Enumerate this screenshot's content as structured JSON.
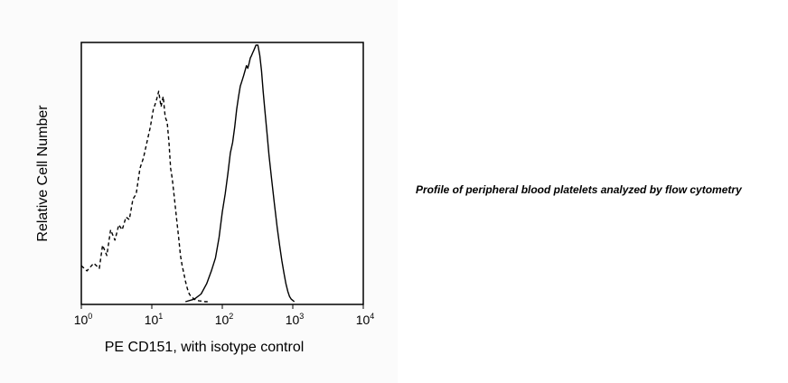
{
  "caption": "Profile of peripheral blood platelets analyzed by flow cytometry",
  "chart_data": {
    "type": "line",
    "xlabel": "PE CD151, with isotype control",
    "ylabel": "Relative Cell Number",
    "x_scale": "log",
    "xlim": [
      1,
      10000
    ],
    "ylim": [
      0,
      100
    ],
    "x_ticks": [
      {
        "base": "10",
        "exp": "0",
        "value": 1
      },
      {
        "base": "10",
        "exp": "1",
        "value": 10
      },
      {
        "base": "10",
        "exp": "2",
        "value": 100
      },
      {
        "base": "10",
        "exp": "3",
        "value": 1000
      },
      {
        "base": "10",
        "exp": "4",
        "value": 10000
      }
    ],
    "grid": false,
    "legend": "none",
    "series": [
      {
        "style": "dashed",
        "color": "#000000",
        "x": [
          1.0,
          1.2,
          1.5,
          1.8,
          2.0,
          2.3,
          2.6,
          3.0,
          3.4,
          3.8,
          4.3,
          4.8,
          5.4,
          6.0,
          6.8,
          7.6,
          8.5,
          9.5,
          10.5,
          11.5,
          12.5,
          13.5,
          14.5,
          15.5,
          16.5,
          17.5,
          18.5,
          19.5,
          21,
          22.5,
          24,
          25.5,
          27,
          28.5,
          30,
          32,
          34,
          36,
          38,
          40,
          43,
          47,
          52,
          57,
          62
        ],
        "y": [
          14,
          12,
          15,
          13,
          22,
          18,
          28,
          24,
          30,
          28,
          33,
          32,
          40,
          42,
          52,
          56,
          62,
          68,
          75,
          78,
          82,
          76,
          80,
          72,
          70,
          62,
          52,
          48,
          40,
          32,
          25,
          18,
          14,
          11,
          8,
          5,
          3,
          2,
          1.5,
          1,
          0.5,
          0.3,
          0.2,
          0,
          0
        ]
      },
      {
        "style": "solid",
        "color": "#000000",
        "x": [
          30,
          40,
          50,
          60,
          70,
          80,
          90,
          100,
          110,
          120,
          130,
          140,
          150,
          160,
          170,
          180,
          190,
          200,
          210,
          220,
          230,
          240,
          250,
          260,
          270,
          280,
          290,
          300,
          320,
          340,
          360,
          380,
          400,
          430,
          460,
          500,
          550,
          600,
          650,
          700,
          750,
          800,
          850,
          900,
          950,
          1000,
          1050
        ],
        "y": [
          0,
          1,
          3,
          7,
          12,
          17,
          25,
          35,
          42,
          50,
          58,
          62,
          68,
          75,
          80,
          84,
          86,
          88,
          90,
          92,
          91,
          93,
          95,
          96,
          97,
          98,
          99,
          100,
          100,
          96,
          90,
          82,
          75,
          66,
          57,
          48,
          38,
          29,
          22,
          16,
          11,
          7,
          4,
          2,
          1,
          0.5,
          0
        ]
      }
    ]
  }
}
